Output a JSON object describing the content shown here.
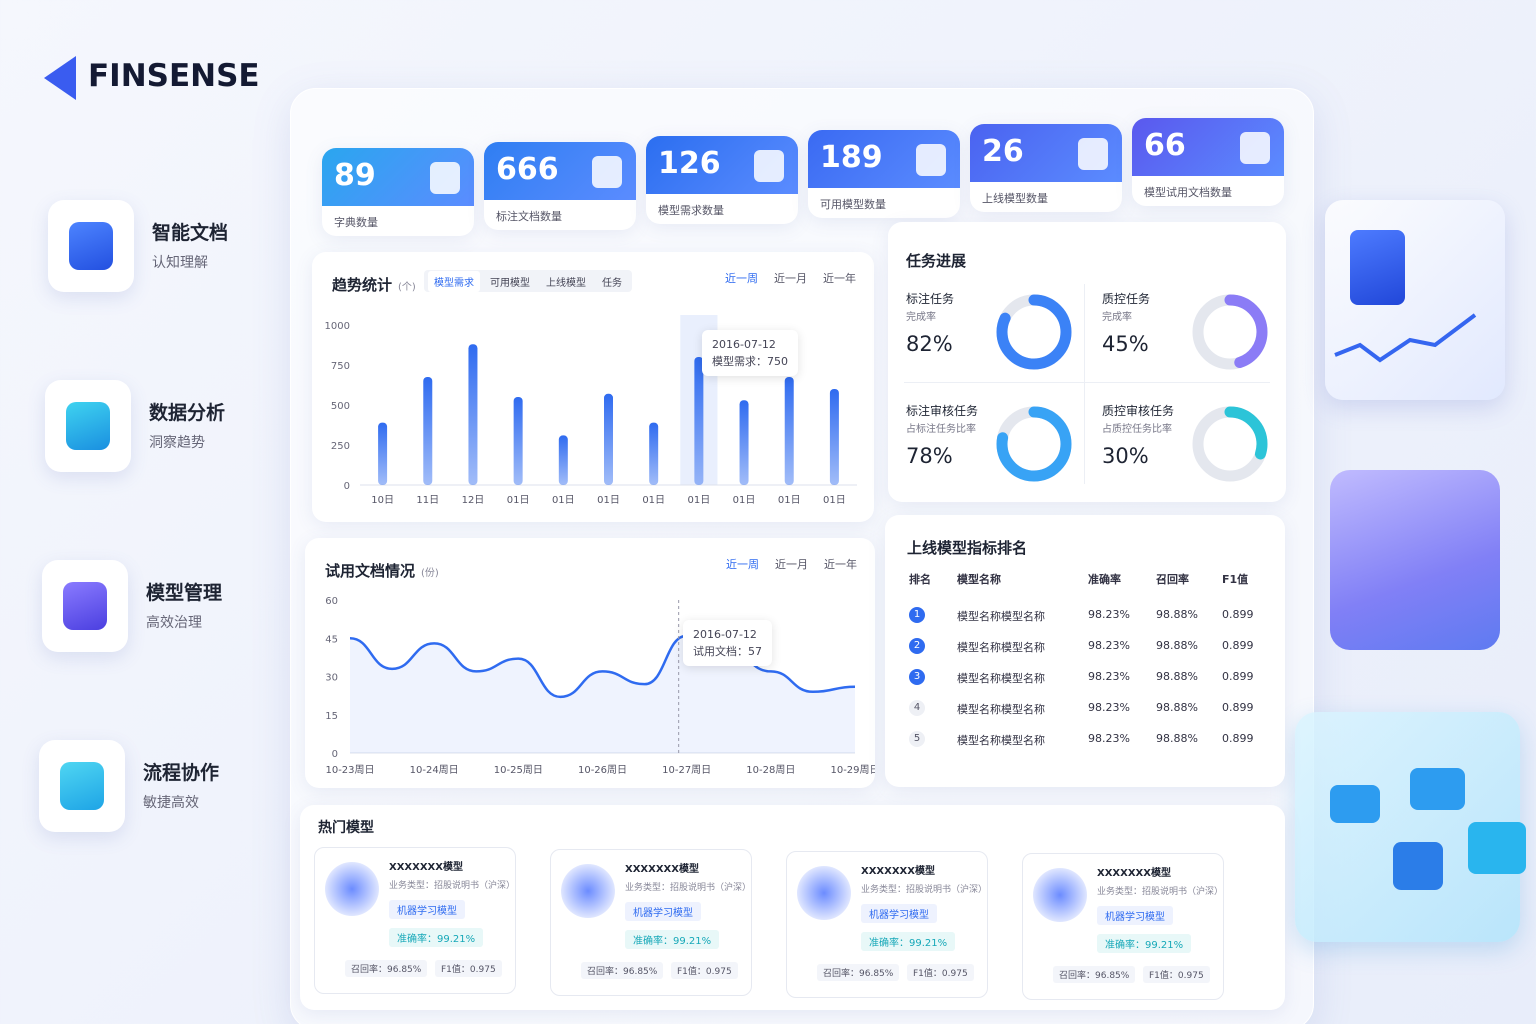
{
  "brand": "FINSENSE",
  "features": [
    {
      "title": "智能文档",
      "subtitle": "认知理解"
    },
    {
      "title": "数据分析",
      "subtitle": "洞察趋势"
    },
    {
      "title": "模型管理",
      "subtitle": "高效治理"
    },
    {
      "title": "流程协作",
      "subtitle": "敏捷高效"
    }
  ],
  "stats": [
    {
      "value": 89,
      "label": "字典数量"
    },
    {
      "value": 666,
      "label": "标注文档数量"
    },
    {
      "value": 126,
      "label": "模型需求数量"
    },
    {
      "value": 189,
      "label": "可用模型数量"
    },
    {
      "value": 26,
      "label": "上线模型数量"
    },
    {
      "value": 66,
      "label": "模型试用文档数量"
    }
  ],
  "chart_data": [
    {
      "type": "bar",
      "title": "趋势统计",
      "unit": "(个)",
      "tabs": [
        "模型需求",
        "可用模型",
        "上线模型",
        "任务"
      ],
      "ranges": [
        "近一周",
        "近一月",
        "近一年"
      ],
      "categories": [
        "10日",
        "11日",
        "12日",
        "01日",
        "01日",
        "01日",
        "01日",
        "01日",
        "01日",
        "01日",
        "01日"
      ],
      "values": [
        390,
        675,
        880,
        550,
        310,
        570,
        390,
        800,
        530,
        675,
        600
      ],
      "color": "#2f6bf0",
      "ylim": [
        0,
        1000
      ],
      "yticks": [
        0,
        250,
        500,
        750,
        1000
      ],
      "tooltip": {
        "date": "2016-07-12",
        "text": "模型需求：750"
      }
    },
    {
      "type": "line",
      "title": "试用文档情况",
      "unit": "(份)",
      "ranges": [
        "近一周",
        "近一月",
        "近一年"
      ],
      "categories": [
        "10-23周日",
        null,
        "10-24周日",
        null,
        "10-25周日",
        null,
        "10-26周日",
        null,
        "10-27周日",
        null,
        "10-28周日",
        null,
        "10-29周日"
      ],
      "values": [
        45,
        33,
        43,
        32,
        37,
        22,
        32,
        27,
        46,
        40,
        32,
        24,
        26
      ],
      "color": "#2f6bf0",
      "ylim": [
        0,
        60
      ],
      "yticks": [
        0,
        15,
        30,
        45,
        60
      ],
      "tooltip": {
        "date": "2016-07-12",
        "text": "试用文档：57"
      }
    }
  ],
  "task_progress": {
    "title": "任务进展",
    "items": [
      {
        "name": "标注任务",
        "metric": "完成率",
        "value": 82,
        "value_label": "82%",
        "color": "#3b82f6"
      },
      {
        "name": "质控任务",
        "metric": "完成率",
        "value": 45,
        "value_label": "45%",
        "color": "#8b7cf6"
      },
      {
        "name": "标注审核任务",
        "metric": "占标注任务比率",
        "value": 78,
        "value_label": "78%",
        "color": "#38a3f5"
      },
      {
        "name": "质控审核任务",
        "metric": "占质控任务比率",
        "value": 30,
        "value_label": "30%",
        "color": "#2cc4d8"
      }
    ]
  },
  "ranking": {
    "title": "上线模型指标排名",
    "headers": [
      "排名",
      "模型名称",
      "准确率",
      "召回率",
      "F1值"
    ],
    "rows": [
      [
        1,
        "模型名称模型名称",
        "98.23%",
        "98.88%",
        "0.899"
      ],
      [
        2,
        "模型名称模型名称",
        "98.23%",
        "98.88%",
        "0.899"
      ],
      [
        3,
        "模型名称模型名称",
        "98.23%",
        "98.88%",
        "0.899"
      ],
      [
        4,
        "模型名称模型名称",
        "98.23%",
        "98.88%",
        "0.899"
      ],
      [
        5,
        "模型名称模型名称",
        "98.23%",
        "98.88%",
        "0.899"
      ]
    ]
  },
  "hot_models": {
    "title": "热门模型",
    "cards": [
      {
        "name": "XXXXXXX模型",
        "type": "业务类型：招股说明书（沪深）",
        "tag": "机器学习模型",
        "accuracy": "准确率：99.21%",
        "recall": "召回率：96.85%",
        "f1": "F1值：0.975"
      },
      {
        "name": "XXXXXXX模型",
        "type": "业务类型：招股说明书（沪深）",
        "tag": "机器学习模型",
        "accuracy": "准确率：99.21%",
        "recall": "召回率：96.85%",
        "f1": "F1值：0.975"
      },
      {
        "name": "XXXXXXX模型",
        "type": "业务类型：招股说明书（沪深）",
        "tag": "机器学习模型",
        "accuracy": "准确率：99.21%",
        "recall": "召回率：96.85%",
        "f1": "F1值：0.975"
      },
      {
        "name": "XXXXXXX模型",
        "type": "业务类型：招股说明书（沪深）",
        "tag": "机器学习模型",
        "accuracy": "准确率：99.21%",
        "recall": "召回率：96.85%",
        "f1": "F1值：0.975"
      }
    ]
  }
}
